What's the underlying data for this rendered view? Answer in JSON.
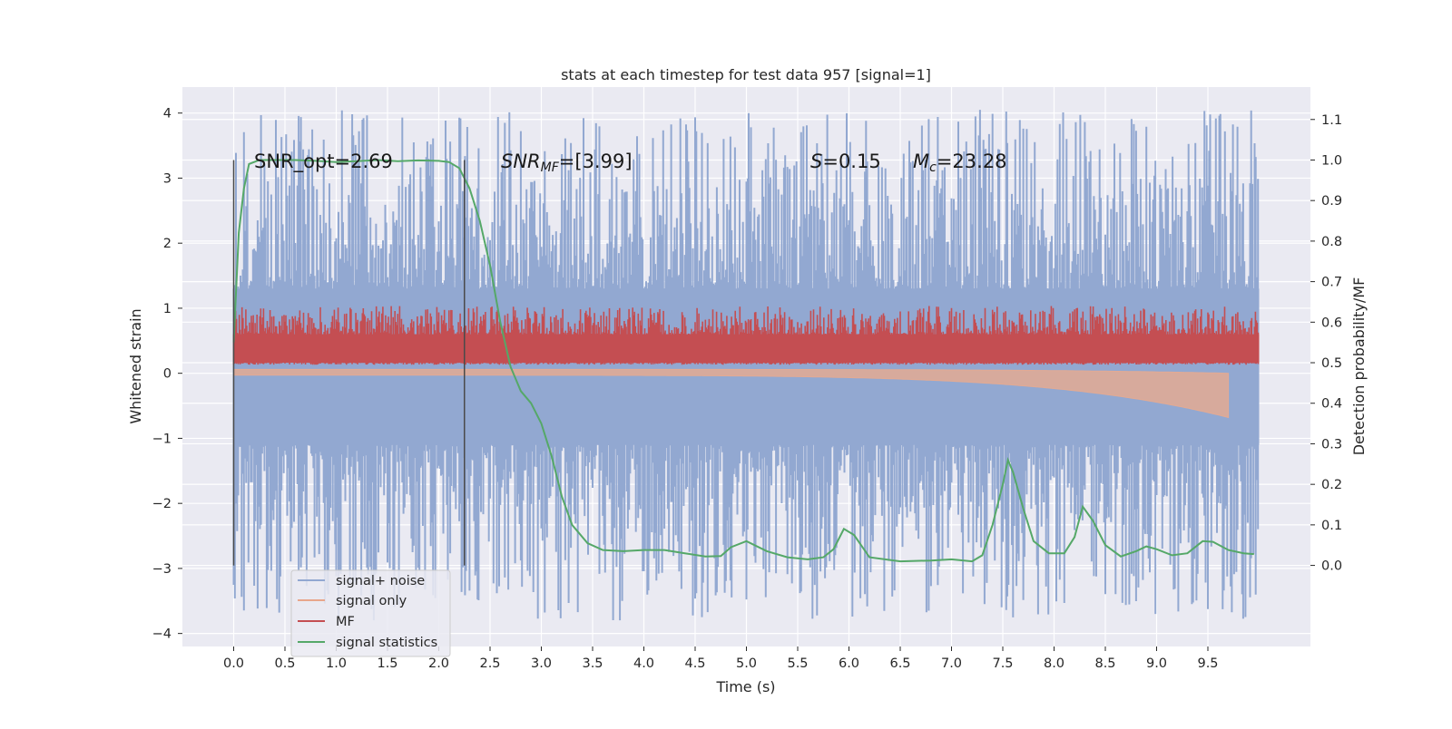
{
  "chart_data": {
    "type": "line",
    "title": "stats at each timestep for test data 957 [signal=1]",
    "xlabel": "Time (s)",
    "ylabel_left": "Whitened strain",
    "ylabel_right": "Detection probability/MF",
    "xlim": [
      -0.5,
      10.5
    ],
    "ylim_left": [
      -4.2,
      4.4
    ],
    "ylim_right": [
      -0.2,
      1.18
    ],
    "x_ticks": [
      "0.0",
      "0.5",
      "1.0",
      "1.5",
      "2.0",
      "2.5",
      "3.0",
      "3.5",
      "4.0",
      "4.5",
      "5.0",
      "5.5",
      "6.0",
      "6.5",
      "7.0",
      "7.5",
      "8.0",
      "8.5",
      "9.0",
      "9.5"
    ],
    "y_ticks_left": [
      "−4",
      "−3",
      "−2",
      "−1",
      "0",
      "1",
      "2",
      "3",
      "4"
    ],
    "y_ticks_right": [
      "0.0",
      "0.1",
      "0.2",
      "0.3",
      "0.4",
      "0.5",
      "0.6",
      "0.7",
      "0.8",
      "0.9",
      "1.0",
      "1.1"
    ],
    "grid": true,
    "legend_position": "bottom-left",
    "annotations": {
      "snr_opt": "SNR_opt=2.69",
      "snr_mf_prefix": "SNR",
      "snr_mf_sub": "MF",
      "snr_mf_suffix": "=[3.99]",
      "s_symbol": "S",
      "s_value": "=0.15",
      "mc_symbol": "M",
      "mc_sub": "c",
      "mc_value": "=23.28"
    },
    "vertical_lines_x": [
      0.0,
      2.25
    ],
    "series": [
      {
        "name": "signal+ noise",
        "color": "#92a8d1",
        "axis": "left",
        "x_range": [
          0.0,
          9.5
        ],
        "envelope_upper": 1.3,
        "envelope_lower": -1.1,
        "spike_max": 4.05,
        "spike_min": -3.8
      },
      {
        "name": "signal only",
        "color": "#e8a68b",
        "axis": "left",
        "x_range": [
          0.0,
          9.7
        ],
        "chirp_end_min": -0.65
      },
      {
        "name": "MF",
        "color": "#c44e52",
        "axis": "right",
        "x_range": [
          0.0,
          10.0
        ],
        "baseline": 0.52,
        "band_low": 0.5,
        "band_high": 0.57,
        "peak": 0.64
      },
      {
        "name": "signal statistics",
        "color": "#55a868",
        "axis": "right",
        "x": [
          0.0,
          0.05,
          0.1,
          0.15,
          0.25,
          0.4,
          0.6,
          0.8,
          1.0,
          1.2,
          1.4,
          1.6,
          1.8,
          2.0,
          2.1,
          2.2,
          2.3,
          2.4,
          2.5,
          2.6,
          2.7,
          2.8,
          2.9,
          3.0,
          3.1,
          3.2,
          3.3,
          3.45,
          3.6,
          3.8,
          4.0,
          4.2,
          4.4,
          4.6,
          4.75,
          4.85,
          5.0,
          5.2,
          5.4,
          5.6,
          5.75,
          5.85,
          5.95,
          6.05,
          6.2,
          6.5,
          6.8,
          7.0,
          7.2,
          7.3,
          7.4,
          7.5,
          7.55,
          7.6,
          7.7,
          7.8,
          7.95,
          8.1,
          8.2,
          8.28,
          8.38,
          8.5,
          8.65,
          8.8,
          8.9,
          9.0,
          9.15,
          9.3,
          9.45,
          9.55,
          9.7,
          9.85,
          9.95
        ],
        "y": [
          0.55,
          0.82,
          0.93,
          0.99,
          1.0,
          1.0,
          1.0,
          0.998,
          0.995,
          0.997,
          1.0,
          0.997,
          0.999,
          0.998,
          0.995,
          0.98,
          0.93,
          0.85,
          0.74,
          0.6,
          0.49,
          0.43,
          0.4,
          0.35,
          0.27,
          0.17,
          0.1,
          0.055,
          0.038,
          0.035,
          0.038,
          0.038,
          0.03,
          0.022,
          0.023,
          0.045,
          0.06,
          0.035,
          0.02,
          0.015,
          0.02,
          0.04,
          0.09,
          0.075,
          0.02,
          0.01,
          0.012,
          0.015,
          0.01,
          0.025,
          0.1,
          0.2,
          0.26,
          0.23,
          0.14,
          0.06,
          0.03,
          0.03,
          0.07,
          0.145,
          0.11,
          0.05,
          0.022,
          0.035,
          0.047,
          0.04,
          0.025,
          0.03,
          0.06,
          0.058,
          0.038,
          0.03,
          0.028
        ]
      }
    ]
  }
}
